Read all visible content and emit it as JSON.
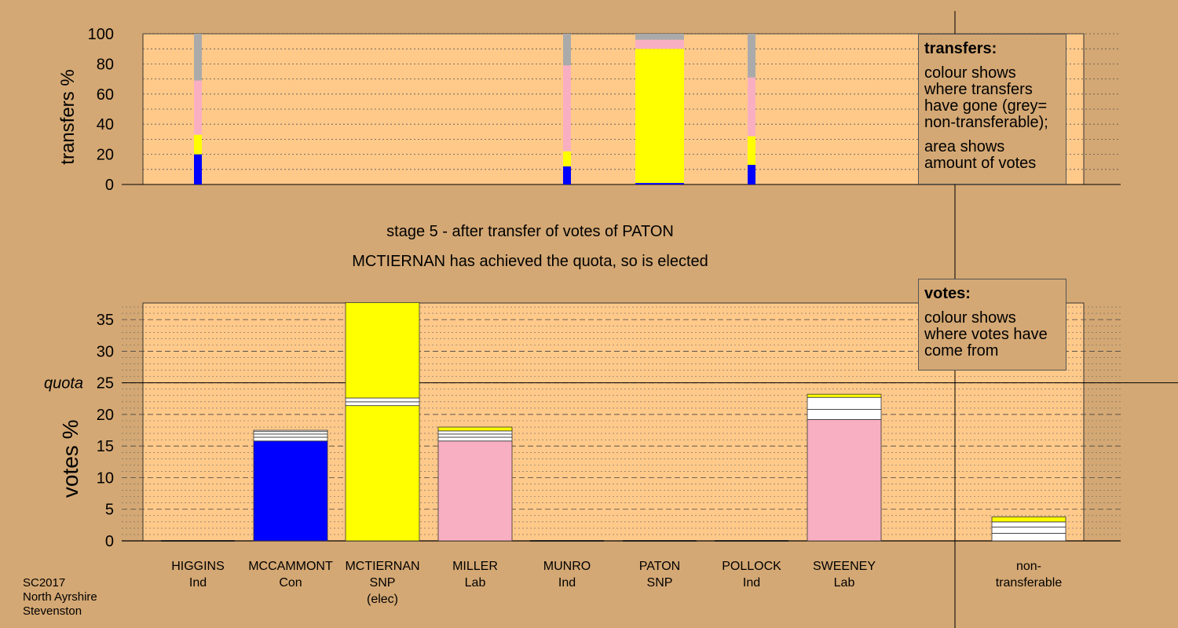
{
  "colors": {
    "background": "#d4a874",
    "plot_area": "#ffc98a",
    "Con": "#0000ff",
    "SNP": "#ffff00",
    "Lab": "#f9afc2",
    "non_transferable": "#aaaaaa",
    "other": "#ffffff"
  },
  "transfers_legend": {
    "title": "transfers:",
    "line1": "colour shows where transfers have gone (grey= non-transferable);",
    "line2": "area shows amount of votes"
  },
  "votes_legend": {
    "title": "votes:",
    "line1": "colour shows where votes have come from"
  },
  "stage_title": "stage 5 - after transfer of votes of PATON",
  "stage_note": "MCTIERNAN has achieved the quota, so is elected",
  "footer": {
    "line1": "SC2017",
    "line2": "North Ayrshire",
    "line3": "Stevenston"
  },
  "chart_data": [
    {
      "type": "bar",
      "stacked": true,
      "ylabel": "transfers %",
      "ylim": [
        0,
        100
      ],
      "yticks": [
        0,
        20,
        40,
        60,
        80,
        100
      ],
      "grid": "dotted horizontal",
      "categories": [
        "HIGGINS",
        "MCCAMMONT",
        "MCTIERNAN",
        "MILLER",
        "MUNRO",
        "PATON",
        "POLLOCK",
        "SWEENEY",
        "non-transferable"
      ],
      "bar_style": [
        "thin",
        "none",
        "none",
        "none",
        "thin",
        "wide",
        "thin",
        "none",
        "none"
      ],
      "segments": [
        [
          {
            "color": "Con",
            "value": 20
          },
          {
            "color": "SNP",
            "value": 13
          },
          {
            "color": "Lab",
            "value": 36
          },
          {
            "color": "non_transferable",
            "value": 31
          }
        ],
        [],
        [],
        [],
        [
          {
            "color": "Con",
            "value": 12
          },
          {
            "color": "SNP",
            "value": 10
          },
          {
            "color": "Lab",
            "value": 57
          },
          {
            "color": "non_transferable",
            "value": 21
          }
        ],
        [
          {
            "color": "Con",
            "value": 1
          },
          {
            "color": "SNP",
            "value": 89
          },
          {
            "color": "Lab",
            "value": 6
          },
          {
            "color": "non_transferable",
            "value": 4
          }
        ],
        [
          {
            "color": "Con",
            "value": 13
          },
          {
            "color": "SNP",
            "value": 19
          },
          {
            "color": "Lab",
            "value": 39
          },
          {
            "color": "non_transferable",
            "value": 29
          }
        ],
        [],
        []
      ]
    },
    {
      "type": "bar",
      "stacked": true,
      "ylabel": "votes %",
      "ylim": [
        0,
        38
      ],
      "yticks": [
        0,
        5,
        10,
        15,
        20,
        25,
        30,
        35
      ],
      "quota_label": "quota",
      "quota": 25,
      "grid": "dashed and dotted horizontal",
      "categories": [
        "HIGGINS",
        "MCCAMMONT",
        "MCTIERNAN",
        "MILLER",
        "MUNRO",
        "PATON",
        "POLLOCK",
        "SWEENEY",
        "non-transferable"
      ],
      "labels": [
        [
          "HIGGINS",
          "Ind"
        ],
        [
          "MCCAMMONT",
          "Con"
        ],
        [
          "MCTIERNAN",
          "SNP",
          "(elec)"
        ],
        [
          "MILLER",
          "Lab"
        ],
        [
          "MUNRO",
          "Ind"
        ],
        [
          "PATON",
          "SNP"
        ],
        [
          "POLLOCK",
          "Ind"
        ],
        [
          "SWEENEY",
          "Lab"
        ],
        [
          "non-",
          "transferable"
        ]
      ],
      "segments": [
        [],
        [
          {
            "color": "Con",
            "value": 15.8
          },
          {
            "color": "other",
            "value": 0.6
          },
          {
            "color": "other",
            "value": 0.5
          },
          {
            "color": "other",
            "value": 0.4
          },
          {
            "color": "other",
            "value": 0.2
          }
        ],
        [
          {
            "color": "SNP",
            "value": 21.4
          },
          {
            "color": "other",
            "value": 0.6
          },
          {
            "color": "other",
            "value": 0.6
          },
          {
            "color": "SNP",
            "value": 15.1
          }
        ],
        [
          {
            "color": "Lab",
            "value": 15.8
          },
          {
            "color": "other",
            "value": 0.6
          },
          {
            "color": "other",
            "value": 0.5
          },
          {
            "color": "other",
            "value": 0.5
          },
          {
            "color": "SNP",
            "value": 0.6
          }
        ],
        [],
        [],
        [],
        [
          {
            "color": "Lab",
            "value": 19.2
          },
          {
            "color": "other",
            "value": 1.6
          },
          {
            "color": "other",
            "value": 1.9
          },
          {
            "color": "SNP",
            "value": 0.5
          }
        ],
        [
          {
            "color": "other",
            "value": 1.2
          },
          {
            "color": "other",
            "value": 1.0
          },
          {
            "color": "other",
            "value": 0.8
          },
          {
            "color": "SNP",
            "value": 0.8
          }
        ]
      ]
    }
  ]
}
